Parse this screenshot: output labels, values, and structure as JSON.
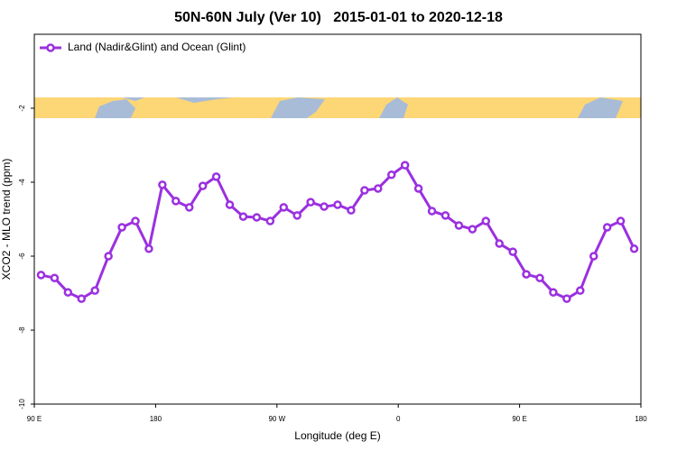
{
  "chart_data": {
    "type": "line",
    "title": "50N-60N July (Ver 10)   2015-01-01 to 2020-12-18",
    "xlabel": "Longitude (deg E)",
    "ylabel": "XCO2 - MLO trend (ppm)",
    "xlim": [
      90,
      540
    ],
    "xticks": [
      {
        "value": 90,
        "label": "90 E"
      },
      180,
      {
        "value": 270,
        "label": "90 W"
      },
      {
        "value": 360,
        "label": "0"
      },
      {
        "value": 450,
        "label": "90 E"
      },
      {
        "value": 540,
        "label": "180"
      }
    ],
    "ylim": [
      -10,
      0
    ],
    "yticks": [
      -10,
      -8,
      -6,
      -4,
      -2
    ],
    "legend": "top-left",
    "x": [
      95,
      105,
      115,
      125,
      135,
      145,
      155,
      165,
      175,
      185,
      195,
      205,
      215,
      225,
      235,
      245,
      255,
      265,
      275,
      285,
      295,
      305,
      315,
      325,
      335,
      345,
      355,
      365,
      375,
      385,
      395,
      405,
      415,
      425,
      435,
      445,
      455,
      465,
      475,
      485,
      495,
      505,
      515,
      525,
      535
    ],
    "series": [
      {
        "name": "Land (Nadir&Glint) and Ocean (Glint)",
        "color": "#9b30e0",
        "values": [
          -6.51,
          -6.59,
          -6.98,
          -7.15,
          -6.93,
          -6.0,
          -5.22,
          -5.05,
          -5.8,
          -4.07,
          -4.51,
          -4.68,
          -4.1,
          -3.85,
          -4.61,
          -4.93,
          -4.95,
          -5.05,
          -4.68,
          -4.9,
          -4.54,
          -4.66,
          -4.61,
          -4.76,
          -4.22,
          -4.17,
          -3.8,
          -3.54,
          -4.17,
          -4.78,
          -4.9,
          -5.17,
          -5.27,
          -5.05,
          -5.66,
          -5.88,
          -6.49,
          -6.59,
          -6.98,
          -7.15,
          -6.93,
          -6.0,
          -5.22,
          -5.05,
          -5.8
        ]
      }
    ]
  }
}
